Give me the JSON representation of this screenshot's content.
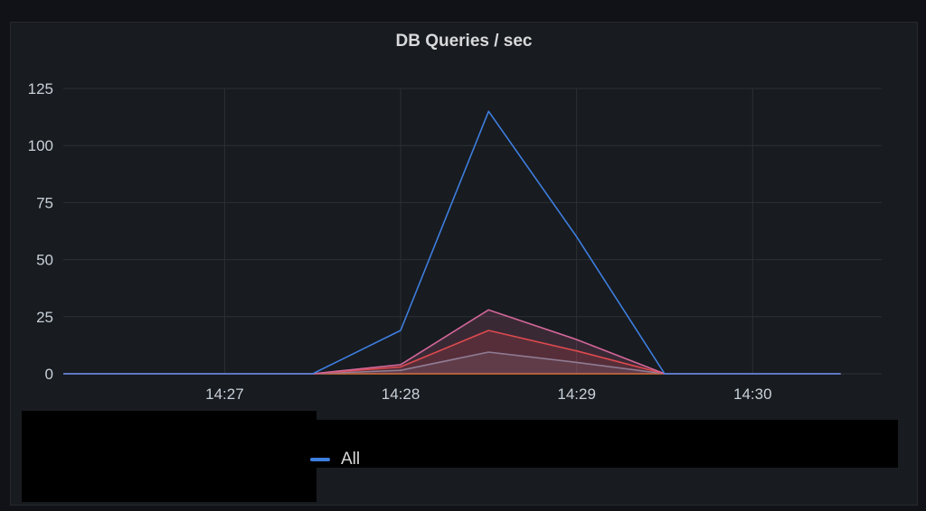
{
  "panel": {
    "title": "DB Queries / sec"
  },
  "legend": {
    "items": [
      {
        "label": "All",
        "color": "#3d7ee0"
      }
    ]
  },
  "chart_data": {
    "type": "line",
    "title": "DB Queries / sec",
    "xlabel": "",
    "ylabel": "",
    "x_ticks": [
      "14:27",
      "14:28",
      "14:29",
      "14:30"
    ],
    "y_ticks": [
      0,
      25,
      50,
      75,
      100,
      125
    ],
    "ylim": [
      0,
      125
    ],
    "grid": true,
    "legend_position": "bottom",
    "series": [
      {
        "name": "All",
        "color": "#3d7ee0",
        "fill": false,
        "points": [
          {
            "x": "14:26:05",
            "y": 0
          },
          {
            "x": "14:27:30",
            "y": 0
          },
          {
            "x": "14:28:00",
            "y": 19
          },
          {
            "x": "14:28:30",
            "y": 115
          },
          {
            "x": "14:29:00",
            "y": 60
          },
          {
            "x": "14:29:30",
            "y": 0
          },
          {
            "x": "14:30:30",
            "y": 0
          }
        ]
      },
      {
        "color": "#d3679a",
        "fill": true,
        "points": [
          {
            "x": "14:26:05",
            "y": 0
          },
          {
            "x": "14:27:30",
            "y": 0
          },
          {
            "x": "14:28:00",
            "y": 4
          },
          {
            "x": "14:28:30",
            "y": 28
          },
          {
            "x": "14:29:00",
            "y": 15
          },
          {
            "x": "14:29:30",
            "y": 0
          },
          {
            "x": "14:30:30",
            "y": 0
          }
        ]
      },
      {
        "color": "#e0443e",
        "fill": true,
        "points": [
          {
            "x": "14:26:05",
            "y": 0
          },
          {
            "x": "14:27:30",
            "y": 0
          },
          {
            "x": "14:28:00",
            "y": 3
          },
          {
            "x": "14:28:30",
            "y": 19
          },
          {
            "x": "14:29:00",
            "y": 10
          },
          {
            "x": "14:29:30",
            "y": 0
          },
          {
            "x": "14:30:30",
            "y": 0
          }
        ]
      },
      {
        "color": "#6e8fa6",
        "fill": true,
        "points": [
          {
            "x": "14:26:05",
            "y": 0
          },
          {
            "x": "14:27:30",
            "y": 0
          },
          {
            "x": "14:28:00",
            "y": 1.5
          },
          {
            "x": "14:28:30",
            "y": 9.5
          },
          {
            "x": "14:29:00",
            "y": 5
          },
          {
            "x": "14:29:30",
            "y": 0
          },
          {
            "x": "14:30:30",
            "y": 0
          }
        ]
      },
      {
        "color": "#e0752d",
        "fill": false,
        "points": [
          {
            "x": "14:26:05",
            "y": 0
          },
          {
            "x": "14:30:30",
            "y": 0
          }
        ]
      }
    ]
  }
}
